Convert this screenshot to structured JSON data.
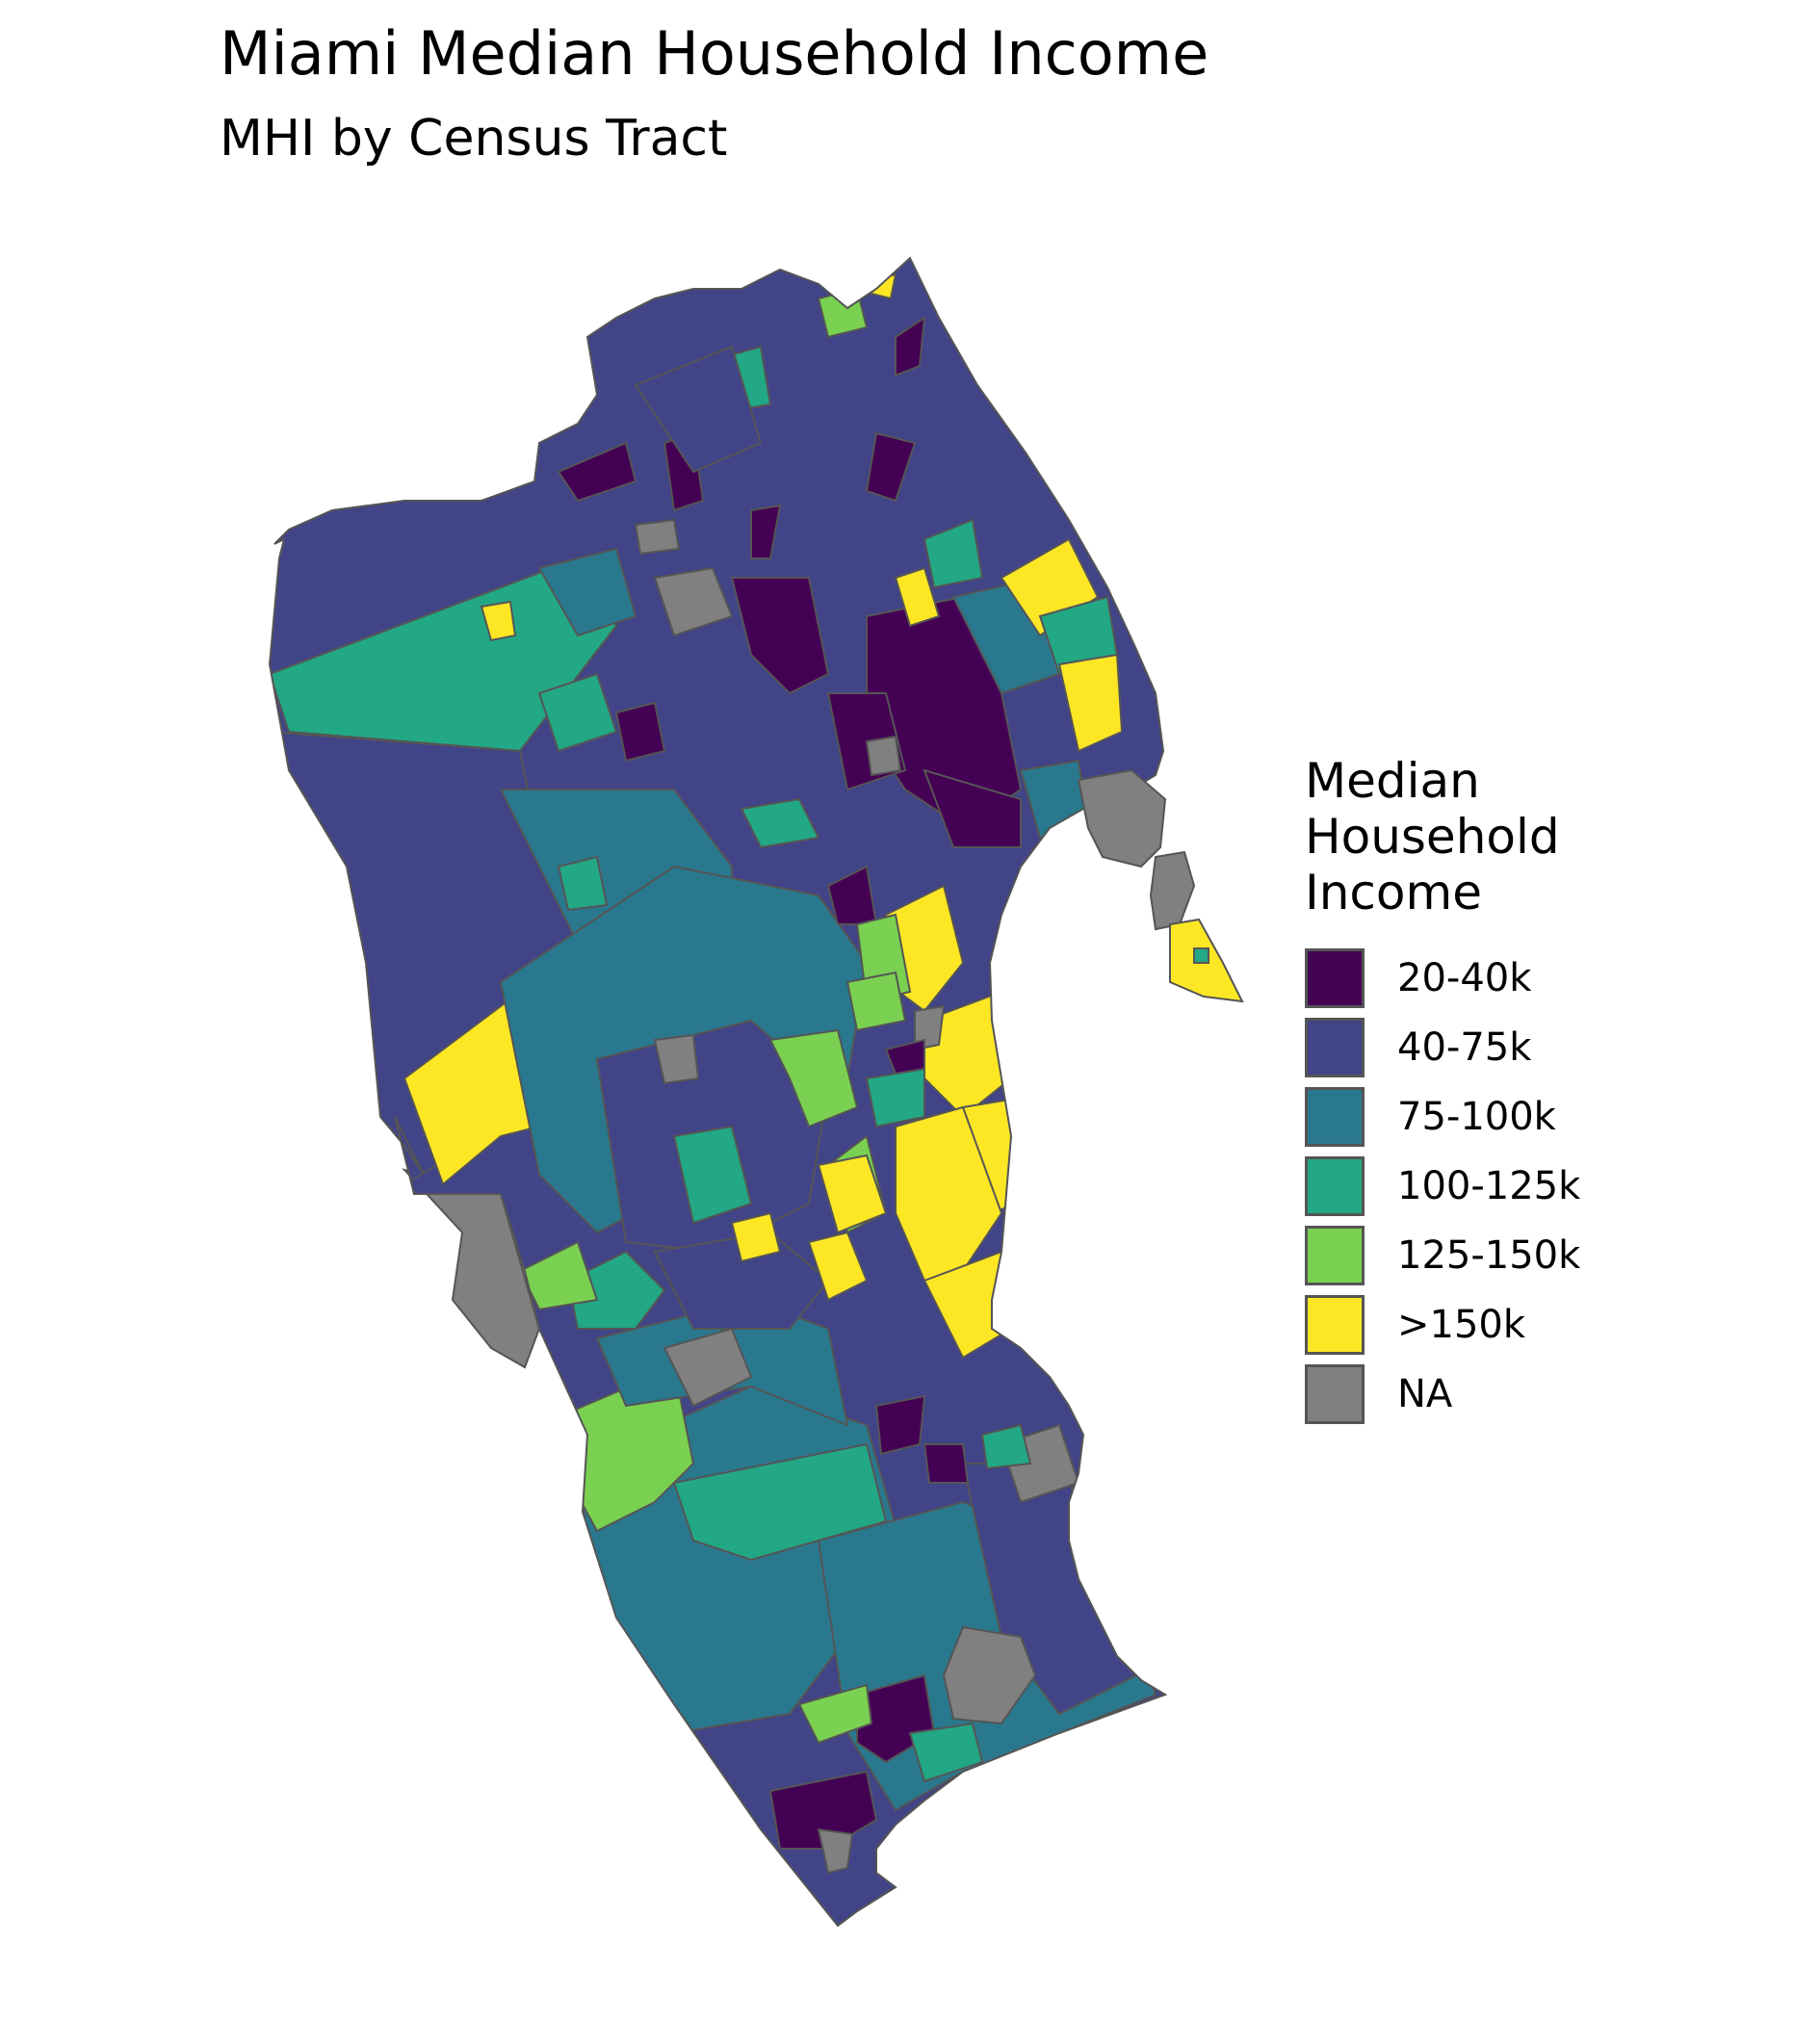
{
  "title": "Miami Median Household Income",
  "subtitle": "MHI by Census Tract",
  "legend": {
    "title": "Median Household Income",
    "items": [
      {
        "label": "20-40k",
        "color": "#440154"
      },
      {
        "label": "40-75k",
        "color": "#414487"
      },
      {
        "label": "75-100k",
        "color": "#2A788E"
      },
      {
        "label": "100-125k",
        "color": "#22A884"
      },
      {
        "label": "125-150k",
        "color": "#7AD151"
      },
      {
        "label": ">150k",
        "color": "#FDE725"
      },
      {
        "label": "NA",
        "color": "#808080"
      }
    ]
  },
  "colors": {
    "tract_border": "#555555",
    "background": "#ffffff"
  }
}
